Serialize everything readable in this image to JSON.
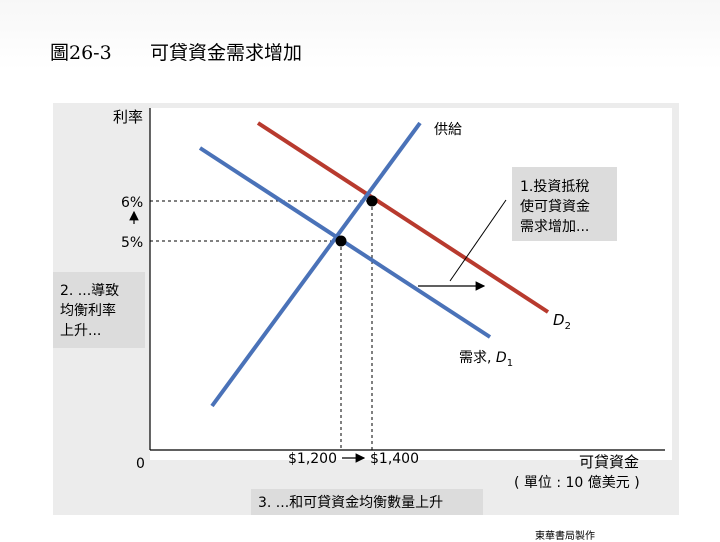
{
  "title": {
    "figure_no": "圖26-3",
    "text": "可貸資金需求增加"
  },
  "credit": "東華書局製作",
  "colors": {
    "supply": "#4a72b8",
    "demand1": "#4a72b8",
    "demand2": "#b83a2e",
    "callout_bg": "#dcdcdc",
    "plot_bg": "#ffffff",
    "panel_bg": "#e8e8e8"
  },
  "axes": {
    "y_label": "利率",
    "x_label": "可貸資金",
    "x_unit": "( 單位 : 10 億美元 )",
    "origin": "0",
    "y_ticks": [
      "6%",
      "5%"
    ],
    "x_ticks": [
      "$1,200",
      "$1,400"
    ]
  },
  "curves": {
    "supply": "供給",
    "demand1_prefix": "需求, ",
    "demand1_symbol": "D",
    "demand1_sub": "1",
    "demand2_symbol": "D",
    "demand2_sub": "2"
  },
  "equilibria": [
    {
      "rate": "5%",
      "quantity": "$1,200"
    },
    {
      "rate": "6%",
      "quantity": "$1,400"
    }
  ],
  "notes": {
    "note1": [
      "1.投資抵稅",
      "使可貸資金",
      "需求增加..."
    ],
    "note2": [
      "2. ...導致",
      "均衡利率",
      "上升..."
    ],
    "note3": "3. ...和可貸資金均衡數量上升"
  }
}
